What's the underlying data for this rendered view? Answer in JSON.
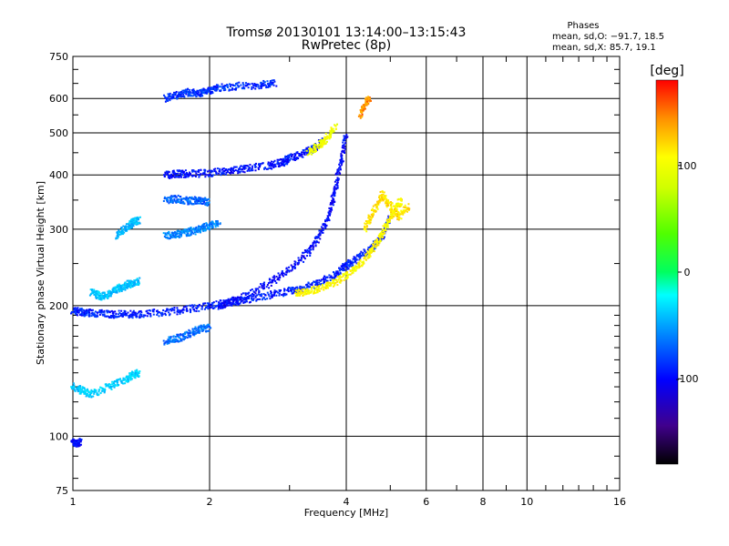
{
  "chart_data": {
    "type": "scatter",
    "title": "Tromsø 20130101 13:14:00–13:15:43",
    "subtitle": "RwPretec (8p)",
    "xlabel": "Frequency [MHz]",
    "ylabel": "Stationary phase Virtual Height [km]",
    "x_scale": "log",
    "y_scale": "log",
    "xlim": [
      1,
      16
    ],
    "ylim": [
      75,
      750
    ],
    "x_ticks": [
      1,
      2,
      4,
      6,
      8,
      10,
      16
    ],
    "y_ticks": [
      75,
      100,
      200,
      300,
      400,
      500,
      600,
      750
    ],
    "grid": true,
    "phases": {
      "title": "Phases",
      "line_o": "mean, sd,O: −91.7, 18.5",
      "line_x": "mean, sd,X:  85.7, 19.1"
    },
    "colorbar": {
      "label": "[deg]",
      "ticks": [
        100,
        0,
        -100
      ],
      "range": [
        -180,
        180
      ]
    },
    "series": [
      {
        "traces": [
          {
            "x": [
              1.0,
              1.05,
              1.1,
              1.2,
              1.3,
              1.4,
              1.6,
              1.8,
              2.0,
              2.2,
              2.4,
              2.7,
              3.0,
              3.2,
              3.5,
              3.8,
              4.0,
              4.2,
              4.5,
              4.8,
              5.0
            ],
            "y": [
              195,
              193,
              192,
              191,
              191,
              191,
              193,
              196,
              200,
              203,
              206,
              211,
              216,
              219,
              226,
              237,
              247,
              255,
              268,
              290,
              320
            ],
            "phase": -100
          },
          {
            "x": [
              1.6,
              1.7,
              1.8,
              2.0,
              2.2,
              2.4,
              2.7,
              2.9,
              3.0,
              3.2,
              3.4,
              3.6
            ],
            "y": [
              400,
              402,
              402,
              404,
              408,
              413,
              420,
              428,
              437,
              447,
              462,
              480
            ],
            "phase": -105
          },
          {
            "x": [
              2.1,
              2.2,
              2.4,
              2.7,
              3.0,
              3.3,
              3.5,
              3.7,
              3.8,
              3.9,
              4.0
            ],
            "y": [
              200,
              203,
              210,
              225,
              242,
              265,
              290,
              330,
              380,
              430,
              500
            ],
            "phase": -110
          },
          {
            "x": [
              3.1,
              3.3,
              3.6,
              3.9,
              4.2,
              4.5,
              4.7,
              4.9,
              5.1,
              5.3
            ],
            "y": [
              214,
              216,
              221,
              230,
              244,
              263,
              282,
              305,
              330,
              350
            ],
            "phase": 110
          },
          {
            "x": [
              4.4,
              4.6,
              4.8,
              5.0,
              5.2,
              5.5
            ],
            "y": [
              300,
              330,
              360,
              340,
              320,
              340
            ],
            "phase": 120
          },
          {
            "x": [
              1.0,
              1.05,
              1.1,
              1.2,
              1.3,
              1.35,
              1.4
            ],
            "y": [
              130,
              127,
              125,
              130,
              135,
              138,
              140
            ],
            "phase": -40
          },
          {
            "x": [
              1.1,
              1.15,
              1.2,
              1.25,
              1.3,
              1.35,
              1.4
            ],
            "y": [
              215,
              210,
              212,
              218,
              222,
              225,
              228
            ],
            "phase": -45
          },
          {
            "x": [
              1.25,
              1.3,
              1.35,
              1.4
            ],
            "y": [
              290,
              300,
              310,
              315
            ],
            "phase": -50
          },
          {
            "x": [
              1.6,
              1.7,
              1.8,
              1.9,
              2.0,
              2.1
            ],
            "y": [
              290,
              292,
              295,
              300,
              305,
              310
            ],
            "phase": -70
          },
          {
            "x": [
              1.6,
              1.7,
              1.8,
              1.9,
              2.0
            ],
            "y": [
              350,
              352,
              348,
              350,
              345
            ],
            "phase": -80
          },
          {
            "x": [
              1.6,
              1.7,
              1.8,
              1.9,
              2.0,
              2.1,
              2.3,
              2.6,
              2.8
            ],
            "y": [
              600,
              610,
              620,
              615,
              625,
              635,
              640,
              645,
              650
            ],
            "phase": -95
          },
          {
            "x": [
              1.6,
              1.7,
              1.8,
              1.9,
              2.0
            ],
            "y": [
              165,
              168,
              172,
              176,
              178
            ],
            "phase": -75
          },
          {
            "x": [
              1.0,
              1.02,
              1.04
            ],
            "y": [
              97,
              96,
              97
            ],
            "phase": -110
          },
          {
            "x": [
              3.3,
              3.5,
              3.6,
              3.8
            ],
            "y": [
              450,
              470,
              480,
              520
            ],
            "phase": 100
          },
          {
            "x": [
              4.3,
              4.4,
              4.5
            ],
            "y": [
              550,
              580,
              600
            ],
            "phase": 150
          }
        ]
      }
    ]
  }
}
